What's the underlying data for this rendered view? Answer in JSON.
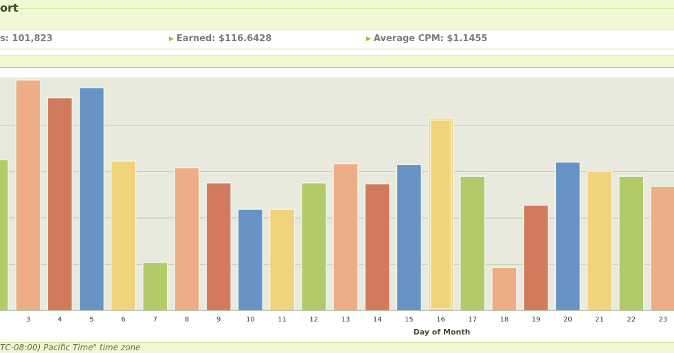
{
  "header": {
    "title": "ort"
  },
  "stats": {
    "impressions": "s: 101,823",
    "earned": "Earned: $116.6428",
    "cpm": "Average CPM: $1.1455"
  },
  "footer": {
    "timezone_note": "TC-08:00) Pacific Time\" time zone"
  },
  "colors": {
    "green": "#b2cb6a",
    "salmon": "#edad87",
    "red": "#d27a5e",
    "blue": "#6794c5",
    "yellow": "#f0d37b",
    "plot_bg": "#e7eadc",
    "grid": "#c4c8b8"
  },
  "chart_data": {
    "type": "bar",
    "xlabel": "Day of Month",
    "ylabel": "",
    "ylim": [
      0,
      4.6
    ],
    "grid": true,
    "categories": [
      "3",
      "4",
      "5",
      "6",
      "7",
      "8",
      "9",
      "10",
      "11",
      "12",
      "13",
      "14",
      "15",
      "16",
      "17",
      "18",
      "19",
      "20",
      "21",
      "22",
      "23"
    ],
    "values": [
      4.55,
      4.2,
      4.4,
      2.95,
      0.95,
      2.82,
      2.52,
      2.0,
      2.0,
      2.52,
      2.9,
      2.5,
      2.88,
      3.8,
      2.65,
      0.85,
      2.08,
      2.93,
      2.75,
      2.65,
      2.45
    ],
    "partial_left_value": 2.98,
    "bar_colors": [
      "salmon",
      "red",
      "blue",
      "yellow",
      "green",
      "salmon",
      "red",
      "blue",
      "yellow",
      "green",
      "salmon",
      "red",
      "blue",
      "yellow",
      "green",
      "salmon",
      "red",
      "blue",
      "yellow",
      "green",
      "salmon"
    ],
    "highlighted_category": "16"
  }
}
